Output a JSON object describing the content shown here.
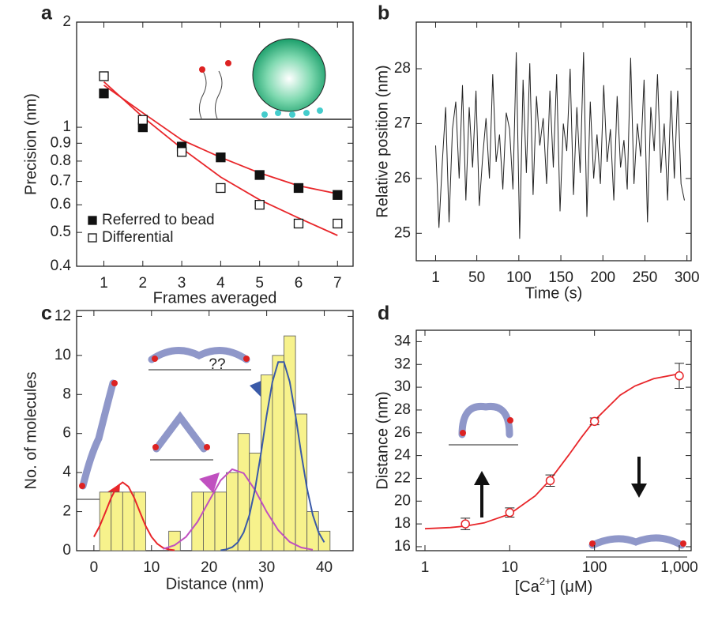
{
  "chart_data": [
    {
      "type": "scatter",
      "panel_label": "a",
      "xlabel": "Frames averaged",
      "ylabel": "Precision (nm)",
      "xlim": [
        0.3,
        7.4
      ],
      "xticks": [
        1,
        2,
        3,
        4,
        5,
        6,
        7
      ],
      "ylim": [
        0.4,
        2
      ],
      "ylog": true,
      "yticks": [
        0.4,
        0.5,
        0.6,
        0.7,
        0.8,
        0.9,
        1,
        2
      ],
      "legend": "lower left",
      "x": [
        1,
        2,
        3,
        4,
        5,
        6,
        7
      ],
      "series": [
        {
          "name": "Referred to bead",
          "marker": "filled-square",
          "color": "#111111",
          "values": [
            1.25,
            1.0,
            0.88,
            0.82,
            0.73,
            0.67,
            0.64
          ]
        },
        {
          "name": "Differential",
          "marker": "open-square",
          "color": "#111111",
          "values": [
            1.4,
            1.05,
            0.85,
            0.67,
            0.6,
            0.53,
            0.53
          ]
        }
      ],
      "fits": [
        {
          "color": "#e8262a",
          "x": [
            1,
            2,
            3,
            4,
            5,
            6,
            7
          ],
          "values": [
            1.32,
            1.1,
            0.92,
            0.82,
            0.74,
            0.68,
            0.645
          ]
        },
        {
          "color": "#e8262a",
          "x": [
            1,
            2,
            3,
            4,
            5,
            6,
            7
          ],
          "values": [
            1.35,
            1.07,
            0.87,
            0.72,
            0.62,
            0.55,
            0.49
          ]
        }
      ]
    },
    {
      "type": "line",
      "panel_label": "b",
      "xlabel": "Time (s)",
      "ylabel": "Relative position (nm)",
      "xlim": [
        -22,
        305
      ],
      "xticks": [
        1,
        50,
        100,
        150,
        200,
        250,
        300
      ],
      "ylim": [
        24.5,
        28.85
      ],
      "yticks": [
        25,
        26,
        27,
        28
      ],
      "series": [
        {
          "color": "#222222",
          "x": [
            1,
            5,
            9,
            13,
            17,
            21,
            25,
            29,
            33,
            37,
            41,
            45,
            49,
            53,
            57,
            61,
            65,
            69,
            73,
            77,
            81,
            85,
            89,
            93,
            97,
            101,
            105,
            109,
            113,
            117,
            121,
            125,
            129,
            133,
            137,
            141,
            145,
            149,
            153,
            157,
            161,
            165,
            169,
            173,
            177,
            181,
            185,
            189,
            193,
            197,
            201,
            205,
            209,
            213,
            217,
            221,
            225,
            229,
            233,
            237,
            241,
            245,
            249,
            253,
            257,
            261,
            265,
            269,
            273,
            277,
            281,
            285,
            289,
            293,
            297
          ],
          "values": [
            26.6,
            25.1,
            26.3,
            27.3,
            25.2,
            26.9,
            27.4,
            26.0,
            27.7,
            25.6,
            27.3,
            26.2,
            27.6,
            25.5,
            26.4,
            27.1,
            26.0,
            27.9,
            26.3,
            26.8,
            25.8,
            27.2,
            26.9,
            25.8,
            28.3,
            24.9,
            27.8,
            26.1,
            28.1,
            25.7,
            27.5,
            26.6,
            27.1,
            25.9,
            27.6,
            26.2,
            27.9,
            25.4,
            27.0,
            26.5,
            28.0,
            25.7,
            27.3,
            26.1,
            28.3,
            25.3,
            27.4,
            26.0,
            26.8,
            25.9,
            27.7,
            26.3,
            26.9,
            25.6,
            27.5,
            26.2,
            26.7,
            25.8,
            28.2,
            25.9,
            27.0,
            26.4,
            27.8,
            25.2,
            27.3,
            26.5,
            27.9,
            26.1,
            27.0,
            25.6,
            27.6,
            26.0,
            27.6,
            25.9,
            25.6
          ]
        }
      ]
    },
    {
      "type": "histogram",
      "panel_label": "c",
      "xlabel": "Distance (nm)",
      "ylabel": "No. of molecules",
      "xlim": [
        -3,
        45
      ],
      "xticks": [
        0,
        10,
        20,
        30,
        40
      ],
      "ylim": [
        0,
        12.3
      ],
      "yticks": [
        0,
        2,
        4,
        6,
        8,
        10,
        12
      ],
      "annotations": [
        "??"
      ],
      "color": "#f7f28c",
      "bins": [
        1,
        3,
        5,
        7,
        9,
        11,
        13,
        15,
        17,
        19,
        21,
        23,
        25,
        27,
        29,
        31,
        33,
        35,
        37,
        39,
        41
      ],
      "counts": [
        3,
        3,
        3,
        3,
        0,
        0,
        1,
        0,
        3,
        3,
        3,
        4,
        6,
        5,
        9,
        10,
        11,
        7,
        2,
        1
      ],
      "fits": [
        {
          "color": "#e8262a",
          "x": [
            0,
            1,
            2,
            3,
            4,
            5,
            6,
            7,
            8,
            9,
            10,
            11,
            12,
            13,
            14
          ],
          "values": [
            0.71,
            1.26,
            1.97,
            2.71,
            3.28,
            3.5,
            3.28,
            2.71,
            1.97,
            1.26,
            0.71,
            0.35,
            0.15,
            0.06,
            0.02
          ]
        },
        {
          "color": "#c050c0",
          "x": [
            12,
            14,
            16,
            18,
            20,
            22,
            24,
            26,
            28,
            30,
            32,
            34,
            36,
            38
          ],
          "values": [
            0.09,
            0.28,
            0.71,
            1.48,
            2.55,
            3.6,
            4.17,
            3.97,
            3.1,
            1.99,
            1.05,
            0.45,
            0.16,
            0.05
          ]
        },
        {
          "color": "#3a5aa8",
          "x": [
            22,
            23,
            24,
            25,
            26,
            27,
            28,
            29,
            30,
            31,
            32,
            33,
            34,
            35,
            36,
            37,
            38,
            39,
            40
          ],
          "values": [
            0.02,
            0.07,
            0.18,
            0.43,
            0.94,
            1.83,
            3.18,
            4.96,
            6.93,
            8.65,
            9.66,
            9.66,
            8.65,
            6.93,
            4.96,
            3.18,
            1.83,
            0.94,
            0.43
          ]
        }
      ]
    },
    {
      "type": "scatter",
      "panel_label": "d",
      "xlabel": [
        "[Ca",
        "2+",
        "] (μM)"
      ],
      "ylabel": "Distance (nm)",
      "xlim": [
        0.79,
        1380
      ],
      "xlog": true,
      "xticks": [
        1,
        10,
        100,
        {
          "value": 1000,
          "label": "1,000"
        }
      ],
      "ylim": [
        15.65,
        35
      ],
      "yticks": [
        16,
        18,
        20,
        22,
        24,
        26,
        28,
        30,
        32,
        34
      ],
      "x": [
        3,
        10,
        30,
        100,
        1000
      ],
      "series": [
        {
          "marker": "open-circle",
          "color": "#e8262a",
          "values": [
            18,
            19,
            21.8,
            27,
            31
          ],
          "errors": [
            0.5,
            0.4,
            0.5,
            0.3,
            1.1
          ]
        }
      ],
      "fits": [
        {
          "color": "#e8262a",
          "x": [
            1,
            2,
            3,
            5,
            10,
            20,
            30,
            50,
            70,
            100,
            200,
            300,
            500,
            1000
          ],
          "values": [
            17.58,
            17.68,
            17.81,
            18.09,
            18.87,
            20.46,
            21.88,
            24.07,
            25.59,
            27.09,
            29.3,
            30.11,
            30.75,
            31.18
          ]
        }
      ]
    }
  ]
}
